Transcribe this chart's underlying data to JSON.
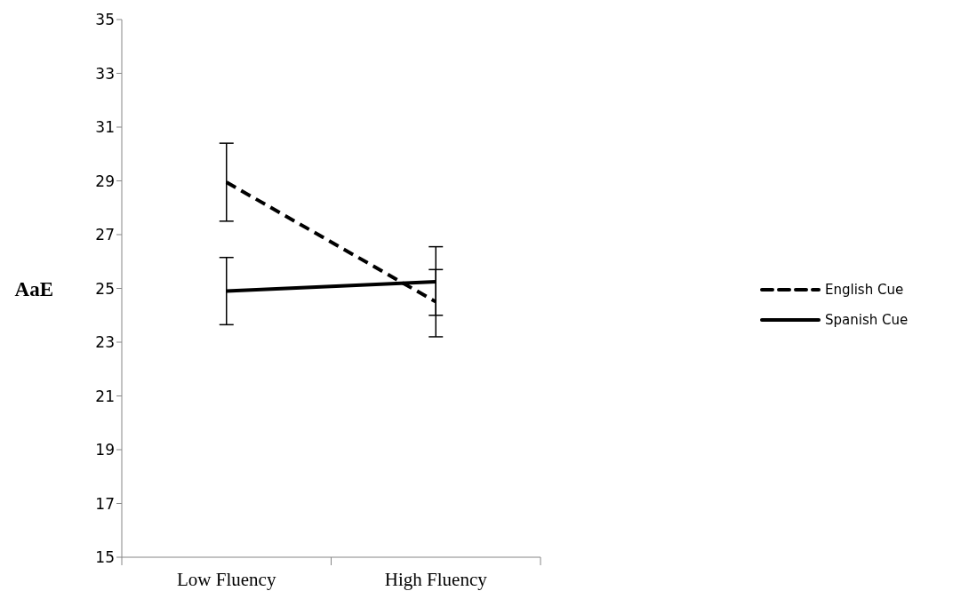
{
  "chart_data": {
    "type": "line",
    "ylabel": "AaE",
    "categories": [
      "Low Fluency",
      "High Fluency"
    ],
    "series": [
      {
        "name": "English Cue",
        "color": "#000000",
        "line_style": "dashed",
        "values": [
          28.95,
          24.5
        ],
        "errors": [
          [
            27.5,
            30.4
          ],
          [
            24.0,
            25.7
          ]
        ]
      },
      {
        "name": "Spanish Cue",
        "color": "#000000",
        "line_style": "solid",
        "values": [
          24.9,
          25.25
        ],
        "errors": [
          [
            23.65,
            26.15
          ],
          [
            23.2,
            26.55
          ]
        ]
      }
    ],
    "ylim": [
      15,
      35
    ],
    "yticks": [
      15,
      17,
      19,
      21,
      23,
      25,
      27,
      29,
      31,
      33,
      35
    ],
    "grid": false,
    "legend": "right",
    "marker": "none"
  }
}
